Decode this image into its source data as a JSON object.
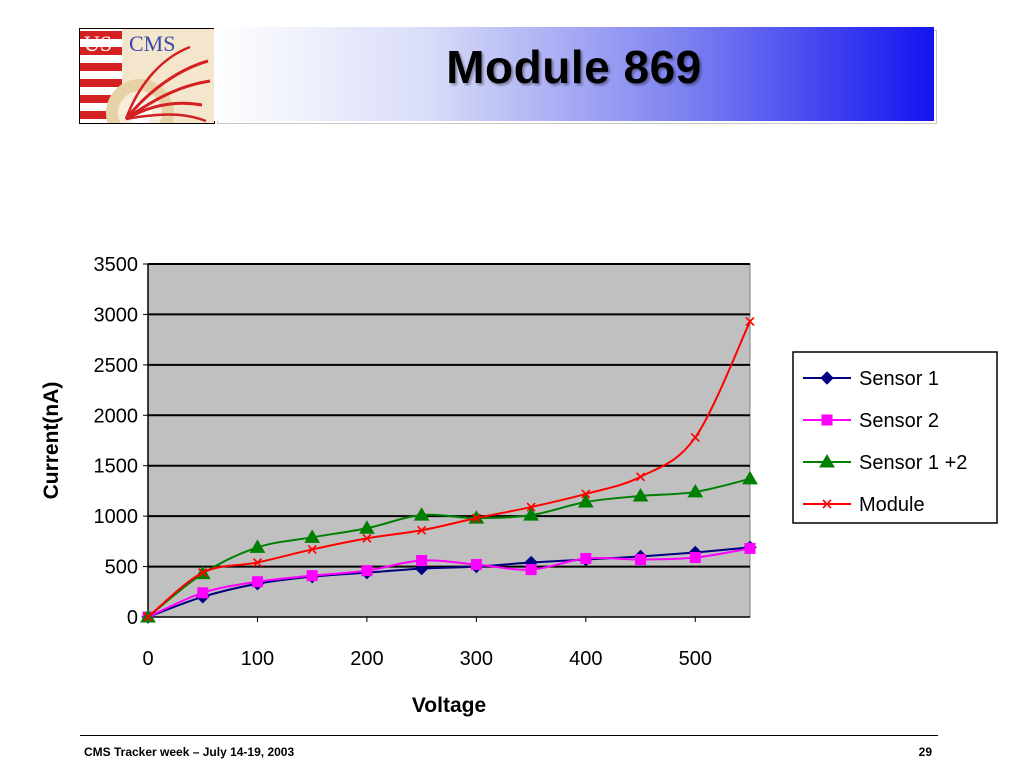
{
  "header": {
    "logo_us": "US",
    "logo_cms": "CMS",
    "title": "Module 869"
  },
  "footer": {
    "left": "CMS Tracker week – July 14-19, 2003",
    "page": "29"
  },
  "chart_data": {
    "type": "line",
    "title": "",
    "xlabel": "Voltage",
    "ylabel": "Current(nA)",
    "xlim": [
      0,
      550
    ],
    "ylim": [
      0,
      3500
    ],
    "xticks": [
      0,
      100,
      200,
      300,
      400,
      500
    ],
    "yticks": [
      0,
      500,
      1000,
      1500,
      2000,
      2500,
      3000,
      3500
    ],
    "grid": "horizontal",
    "plot_background": "#c0c0c0",
    "legend_position": "right",
    "series": [
      {
        "name": "Sensor 1",
        "color": "#000080",
        "marker": "diamond",
        "x": [
          0,
          50,
          100,
          150,
          200,
          250,
          300,
          350,
          400,
          450,
          500,
          550
        ],
        "y": [
          0,
          200,
          330,
          400,
          440,
          480,
          500,
          540,
          570,
          600,
          640,
          690
        ]
      },
      {
        "name": "Sensor 2",
        "color": "#ff00ff",
        "marker": "square",
        "x": [
          0,
          50,
          100,
          150,
          200,
          250,
          300,
          350,
          400,
          450,
          500,
          550
        ],
        "y": [
          0,
          240,
          350,
          410,
          460,
          560,
          520,
          470,
          580,
          570,
          590,
          680
        ]
      },
      {
        "name": "Sensor 1 +2",
        "color": "#008000",
        "marker": "triangle",
        "x": [
          0,
          50,
          100,
          150,
          200,
          250,
          300,
          350,
          400,
          450,
          500,
          550
        ],
        "y": [
          0,
          430,
          690,
          790,
          880,
          1010,
          980,
          1010,
          1140,
          1200,
          1240,
          1370
        ]
      },
      {
        "name": "Module",
        "color": "#ff0000",
        "marker": "x",
        "x": [
          0,
          50,
          100,
          150,
          200,
          250,
          300,
          350,
          400,
          450,
          500,
          550
        ],
        "y": [
          0,
          440,
          540,
          670,
          780,
          860,
          980,
          1090,
          1220,
          1390,
          1780,
          2930
        ]
      }
    ]
  }
}
